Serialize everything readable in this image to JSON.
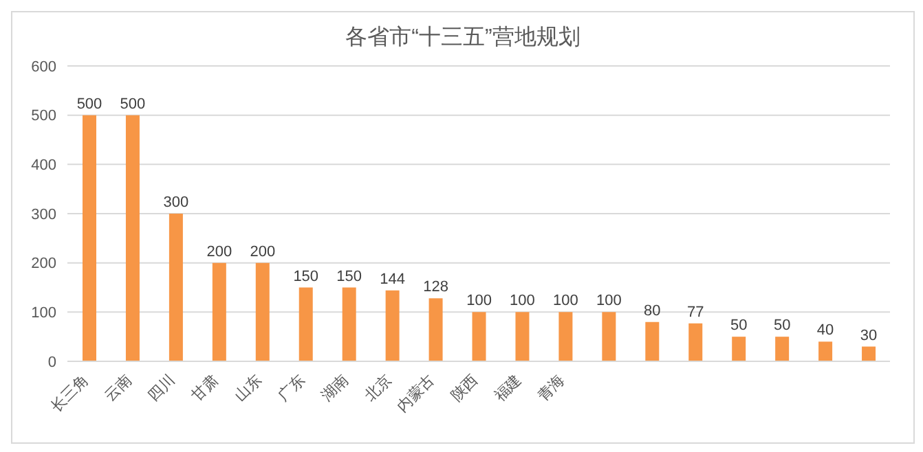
{
  "chart_data": {
    "type": "bar",
    "title": "各省市“十三五”营地规划",
    "categories": [
      "长三角",
      "云南",
      "四川",
      "甘肃",
      "山东",
      "广东",
      "湖南",
      "北京",
      "内蒙古",
      "陕西",
      "福建",
      "青海",
      null,
      null,
      null,
      null,
      null,
      null,
      null
    ],
    "values": [
      500,
      500,
      300,
      200,
      200,
      150,
      150,
      144,
      128,
      100,
      100,
      100,
      100,
      80,
      77,
      50,
      50,
      40,
      30
    ],
    "color": "#f79646",
    "ylim": [
      0,
      600
    ],
    "yticks": [
      0,
      100,
      200,
      300,
      400,
      500,
      600
    ],
    "grid": "y",
    "data_labels": true
  }
}
